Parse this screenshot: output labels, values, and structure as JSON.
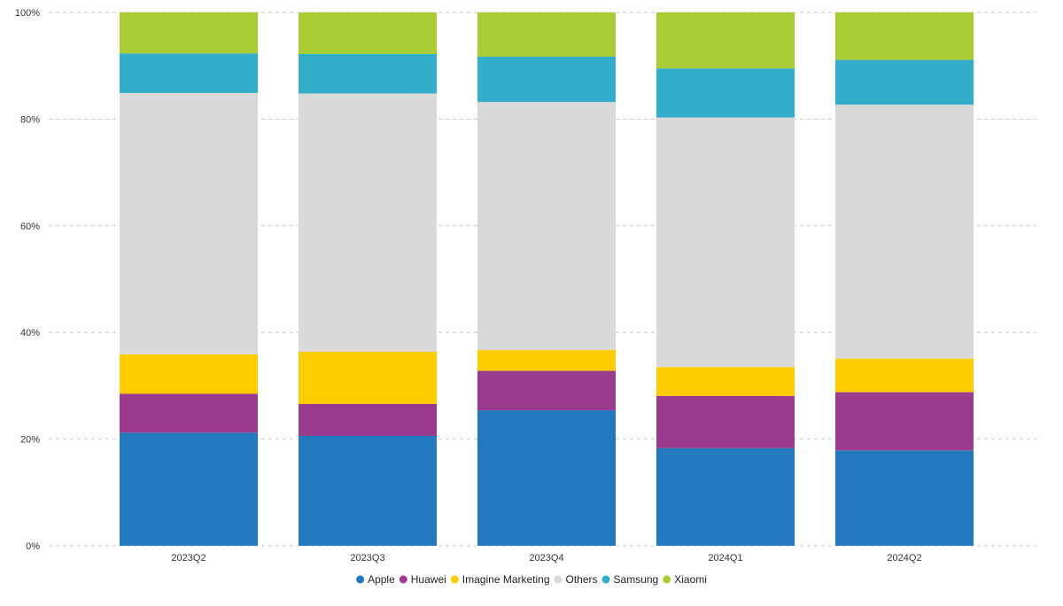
{
  "chart_data": {
    "type": "bar",
    "stacked": true,
    "normalized": true,
    "categories": [
      "2023Q2",
      "2023Q3",
      "2023Q4",
      "2024Q1",
      "2024Q2"
    ],
    "series": [
      {
        "name": "Apple",
        "color": "#2479be",
        "values": [
          21.2,
          20.6,
          25.4,
          18.3,
          17.9
        ]
      },
      {
        "name": "Huawei",
        "color": "#9b3b8e",
        "values": [
          7.3,
          6.0,
          7.4,
          9.8,
          10.9
        ]
      },
      {
        "name": "Imagine Marketing",
        "color": "#ffcc00",
        "values": [
          7.4,
          9.8,
          3.9,
          5.4,
          6.3
        ]
      },
      {
        "name": "Others",
        "color": "#d9d9d9",
        "values": [
          49.0,
          48.4,
          46.5,
          46.8,
          47.6
        ]
      },
      {
        "name": "Samsung",
        "color": "#33adc9",
        "values": [
          7.4,
          7.4,
          8.5,
          9.2,
          8.4
        ]
      },
      {
        "name": "Xiaomi",
        "color": "#a9cb33",
        "values": [
          7.7,
          7.8,
          8.3,
          10.5,
          8.9
        ]
      }
    ],
    "y_ticks": [
      "0%",
      "20%",
      "40%",
      "60%",
      "80%",
      "100%"
    ],
    "ylim": [
      0,
      100
    ],
    "grid": true,
    "legend_position": "bottom-center",
    "title": "",
    "xlabel": "",
    "ylabel": ""
  }
}
